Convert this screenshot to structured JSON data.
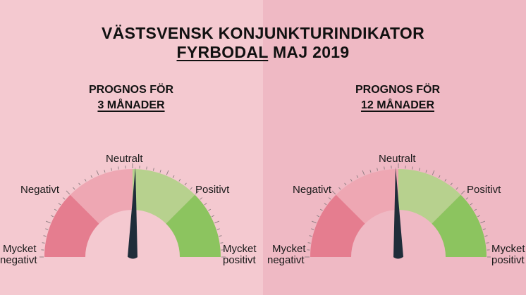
{
  "title": {
    "line1": "VÄSTSVENSK KONJUNKTURINDIKATOR",
    "region": "FYRBODAL",
    "period": "MAJ 2019"
  },
  "gauges": [
    {
      "heading_line1": "PROGNOS FÖR",
      "heading_line2": "3 MÅNADER",
      "needle_value": 0.51,
      "labels": {
        "neutral": "Neutralt",
        "negative": "Negativt",
        "positive": "Positivt",
        "very_negative_1": "Mycket",
        "very_negative_2": "negativt",
        "very_positive_1": "Mycket",
        "very_positive_2": "positivt"
      }
    },
    {
      "heading_line1": "PROGNOS FÖR",
      "heading_line2": "12 MÅNADER",
      "needle_value": 0.49,
      "labels": {
        "neutral": "Neutralt",
        "negative": "Negativt",
        "positive": "Positivt",
        "very_negative_1": "Mycket",
        "very_negative_2": "negativt",
        "very_positive_1": "Mycket",
        "very_positive_2": "positivt"
      }
    }
  ],
  "colors": {
    "background_left": "#f4c9d0",
    "background_right": "#efb9c4",
    "very_negative": "#e57d8f",
    "negative": "#eea7b3",
    "positive": "#b7d18e",
    "very_positive": "#8cc45f",
    "needle": "#1f2d3a"
  }
}
